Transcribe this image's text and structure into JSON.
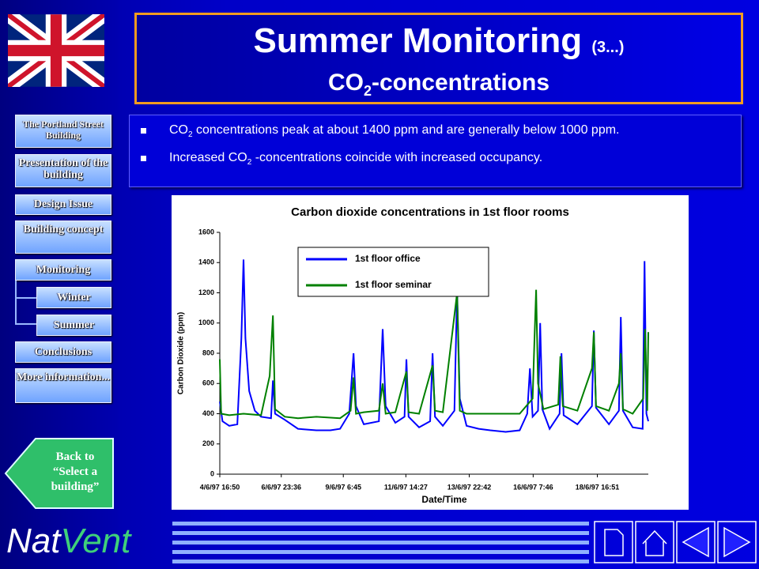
{
  "header": {
    "title": "Summer Monitoring",
    "title_suffix": "(3...)",
    "subtitle_prefix": "CO",
    "subtitle_sub": "2",
    "subtitle_suffix": "-concentrations"
  },
  "nav": {
    "items": [
      "The Portland Street Building",
      "Presentation of the building",
      "Design Issue",
      "Building concept",
      "Monitoring",
      "Winter",
      "Summer",
      "Conclusions",
      "More information..."
    ]
  },
  "back_button": {
    "lines": [
      "Back to",
      "“Select a",
      "building”"
    ]
  },
  "bullets": [
    {
      "text": "CO",
      "sub": "2",
      "rest": " concentrations peak at about 1400 ppm and are generally below 1000 ppm."
    },
    {
      "text": "Increased CO",
      "sub": "2",
      "rest": " -concentrations coincide with increased occupancy."
    }
  ],
  "logo": {
    "first": "Nat",
    "second": "Vent"
  },
  "chart_data": {
    "type": "line",
    "title": "Carbon dioxide concentrations in 1st floor rooms",
    "x_label": "Date/Time",
    "y_label": "Carbon Dioxide (ppm)",
    "xlim": [
      0.7,
      16.59
    ],
    "xticks": [
      {
        "value": 0.7,
        "label": "4/6/97 16:50"
      },
      {
        "value": 2.98,
        "label": "6/6/97 23:36"
      },
      {
        "value": 5.28,
        "label": "9/6/97 6:45"
      },
      {
        "value": 7.6,
        "label": "11/6/97 14:27"
      },
      {
        "value": 9.95,
        "label": "13/6/97 22:42"
      },
      {
        "value": 12.32,
        "label": "16/6/97 7:46"
      },
      {
        "value": 14.7,
        "label": "18/6/97 16:51"
      }
    ],
    "ylim": [
      0,
      1600
    ],
    "yticks": [
      0,
      200,
      400,
      600,
      800,
      1000,
      1200,
      1400,
      1600
    ],
    "grid": false,
    "legend": "top-left",
    "series": [
      {
        "name": "1st floor office",
        "color": "#0000ff",
        "x": [
          0.7,
          0.8,
          1.05,
          1.35,
          1.5,
          1.58,
          1.65,
          1.79,
          2.0,
          2.23,
          2.6,
          2.67,
          2.75,
          3.11,
          3.6,
          4.28,
          4.8,
          5.16,
          5.5,
          5.66,
          5.75,
          6.04,
          6.6,
          6.74,
          6.85,
          7.21,
          7.55,
          7.62,
          7.7,
          8.09,
          8.5,
          8.59,
          8.68,
          8.97,
          9.4,
          9.5,
          9.6,
          9.85,
          10.3,
          10.73,
          11.3,
          11.82,
          12.1,
          12.2,
          12.3,
          12.5,
          12.58,
          12.66,
          12.93,
          13.3,
          13.37,
          13.45,
          13.96,
          14.5,
          14.57,
          14.65,
          15.13,
          15.5,
          15.57,
          15.65,
          16.01,
          16.38,
          16.45,
          16.52,
          16.59
        ],
        "values": [
          480,
          350,
          320,
          330,
          900,
          1420,
          900,
          550,
          420,
          380,
          370,
          620,
          400,
          360,
          300,
          290,
          290,
          300,
          400,
          800,
          450,
          330,
          350,
          960,
          450,
          340,
          380,
          760,
          380,
          310,
          350,
          800,
          380,
          320,
          420,
          1220,
          500,
          320,
          300,
          290,
          280,
          290,
          400,
          700,
          380,
          420,
          1000,
          430,
          300,
          400,
          800,
          390,
          330,
          450,
          950,
          440,
          330,
          420,
          1040,
          420,
          310,
          300,
          1410,
          400,
          350
        ]
      },
      {
        "name": "1st floor seminar",
        "color": "#008000",
        "x": [
          0.7,
          0.75,
          1.05,
          1.58,
          2.23,
          2.55,
          2.67,
          2.75,
          3.11,
          3.6,
          4.28,
          5.16,
          5.55,
          5.66,
          5.75,
          6.04,
          6.6,
          6.74,
          6.85,
          7.21,
          7.62,
          7.7,
          8.09,
          8.59,
          8.68,
          8.97,
          9.5,
          9.6,
          9.85,
          10.73,
          11.82,
          12.3,
          12.37,
          12.43,
          12.5,
          12.7,
          13.25,
          13.33,
          13.42,
          13.96,
          14.5,
          14.57,
          14.65,
          15.13,
          15.5,
          15.57,
          15.65,
          16.01,
          16.4,
          16.47,
          16.55,
          16.59
        ],
        "values": [
          760,
          400,
          390,
          400,
          390,
          650,
          1050,
          430,
          380,
          370,
          380,
          370,
          420,
          640,
          400,
          410,
          420,
          600,
          400,
          410,
          680,
          410,
          400,
          720,
          420,
          410,
          1200,
          420,
          400,
          400,
          400,
          500,
          900,
          1220,
          600,
          430,
          460,
          780,
          450,
          420,
          700,
          940,
          450,
          420,
          600,
          800,
          430,
          400,
          500,
          960,
          420,
          940
        ]
      }
    ]
  }
}
